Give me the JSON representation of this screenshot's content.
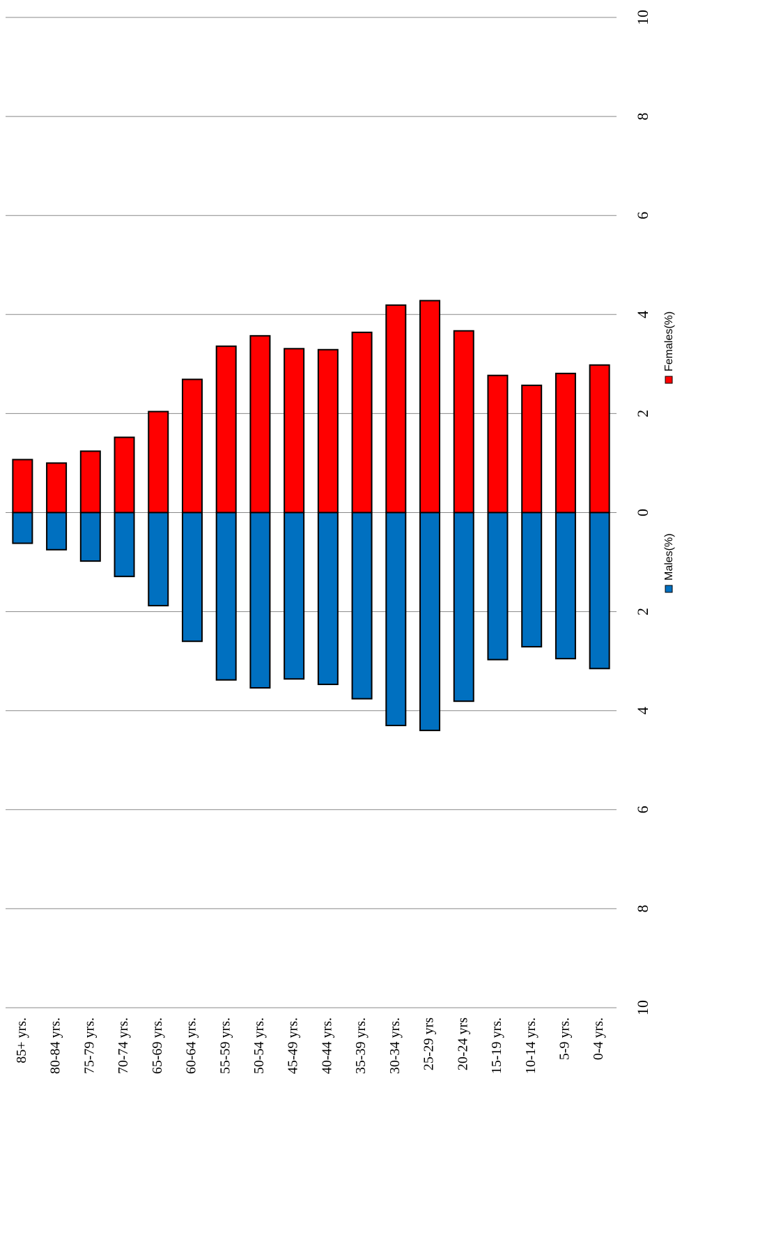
{
  "chart_data": {
    "type": "bar",
    "categories": [
      "85+ yrs.",
      "80-84 yrs.",
      "75-79 yrs.",
      "70-74 yrs.",
      "65-69 yrs.",
      "60-64 yrs.",
      "55-59 yrs.",
      "50-54 yrs.",
      "45-49 yrs.",
      "40-44 yrs.",
      "35-39 yrs.",
      "30-34 yrs.",
      "25-29 yrs",
      "20-24 yrs",
      "15-19 yrs.",
      "10-14 yrs.",
      "5-9 yrs.",
      "0-4 yrs."
    ],
    "series": [
      {
        "name": "Males(%)",
        "color": "#0070c0",
        "values": [
          -0.62,
          -0.75,
          -0.98,
          -1.29,
          -1.88,
          -2.6,
          -3.38,
          -3.54,
          -3.36,
          -3.47,
          -3.76,
          -4.3,
          -4.4,
          -3.81,
          -2.97,
          -2.71,
          -2.95,
          -3.15
        ]
      },
      {
        "name": "Females(%)",
        "color": "#ff0000",
        "values": [
          1.07,
          1.0,
          1.24,
          1.52,
          2.04,
          2.69,
          3.36,
          3.57,
          3.31,
          3.29,
          3.64,
          4.19,
          4.28,
          3.67,
          2.77,
          2.57,
          2.81,
          2.98
        ]
      }
    ],
    "ylim": [
      -10,
      10
    ],
    "yticks": [
      {
        "value": -10,
        "label": "10"
      },
      {
        "value": -8,
        "label": "8"
      },
      {
        "value": -6,
        "label": "6"
      },
      {
        "value": -4,
        "label": "4"
      },
      {
        "value": -2,
        "label": "2"
      },
      0,
      2,
      4,
      6,
      8,
      10
    ],
    "grid": true,
    "legend": "right"
  }
}
